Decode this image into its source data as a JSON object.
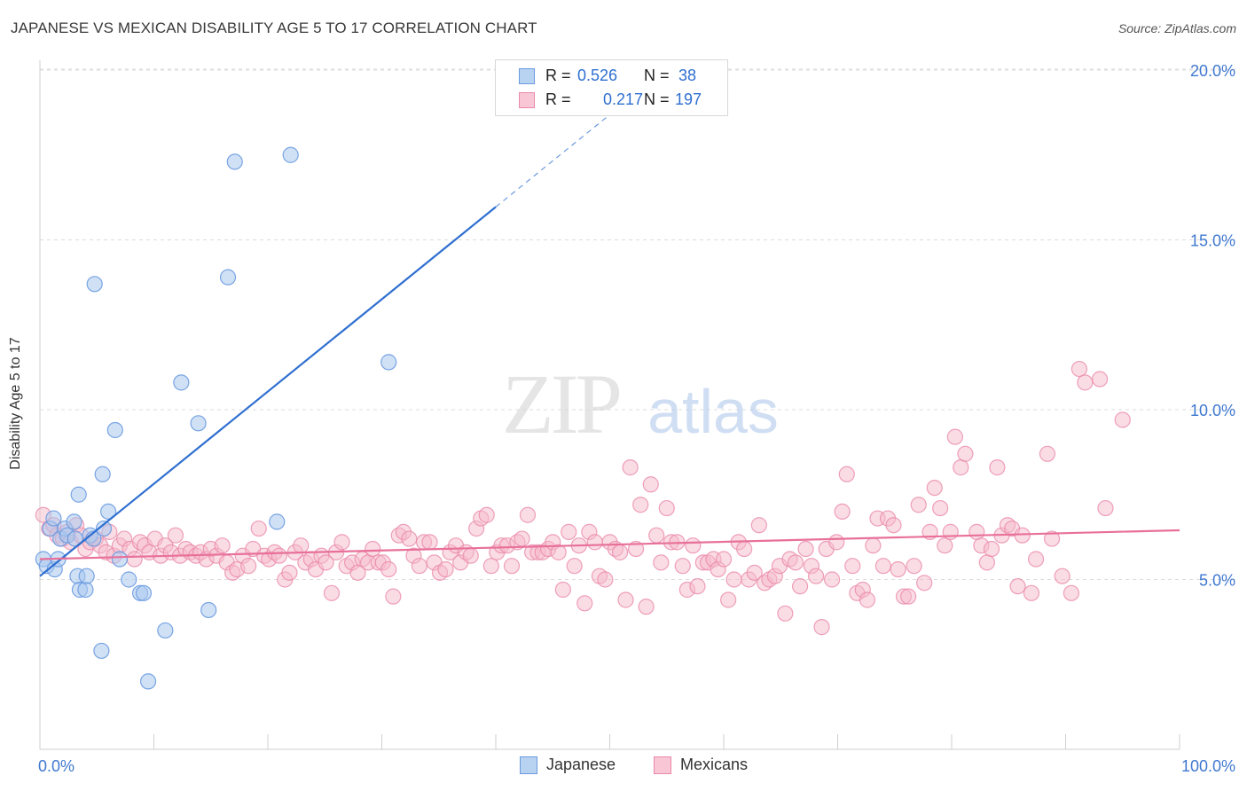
{
  "title": "JAPANESE VS MEXICAN DISABILITY AGE 5 TO 17 CORRELATION CHART",
  "source": "Source: ZipAtlas.com",
  "watermark": {
    "zip": "ZIP",
    "atlas": "atlas"
  },
  "legend": {
    "rows": [
      {
        "r_label": "R =",
        "r_value": "0.526",
        "n_label": "N =",
        "n_value": "38"
      },
      {
        "r_label": "R =",
        "r_value": "0.217",
        "n_label": "N =",
        "n_value": "197"
      }
    ]
  },
  "bottom_legend": {
    "japanese": "Japanese",
    "mexicans": "Mexicans"
  },
  "colors": {
    "japanese_fill": "#aac8ee",
    "japanese_stroke": "#6b9be0",
    "japanese_line": "#2f6fd0",
    "mexican_fill": "#f6b9cc",
    "mexican_stroke": "#ea8aaa",
    "mexican_line": "#e8709a",
    "tick_label": "#3f78d0",
    "grid": "#dddddd"
  },
  "chart_data": {
    "type": "scatter",
    "title": "JAPANESE VS MEXICAN DISABILITY AGE 5 TO 17 CORRELATION CHART",
    "xlabel": "",
    "ylabel": "Disability Age 5 to 17",
    "xlim": [
      0,
      100
    ],
    "ylim": [
      0,
      21
    ],
    "x_tick_labels": [
      "0.0%",
      "100.0%"
    ],
    "y_ticks": [
      5,
      10,
      15,
      20
    ],
    "y_tick_labels": [
      "5.0%",
      "10.0%",
      "15.0%",
      "20.0%"
    ],
    "grid": "dashed horizontal",
    "legend_position": "top-center",
    "series": [
      {
        "name": "Japanese",
        "r": 0.526,
        "n": 38,
        "trend": {
          "x": [
            0,
            40
          ],
          "y": [
            5.1,
            15.97
          ],
          "dashed_to": [
            53,
            19.5
          ]
        },
        "points": [
          [
            0.3,
            5.6
          ],
          [
            0.6,
            5.4
          ],
          [
            0.9,
            6.5
          ],
          [
            1.2,
            6.8
          ],
          [
            1.3,
            5.3
          ],
          [
            1.6,
            5.6
          ],
          [
            1.8,
            6.2
          ],
          [
            2.2,
            6.5
          ],
          [
            2.4,
            6.3
          ],
          [
            3.0,
            6.7
          ],
          [
            3.1,
            6.2
          ],
          [
            3.3,
            5.1
          ],
          [
            3.5,
            4.7
          ],
          [
            3.4,
            7.5
          ],
          [
            4.0,
            4.7
          ],
          [
            4.1,
            5.1
          ],
          [
            4.4,
            6.3
          ],
          [
            4.7,
            6.2
          ],
          [
            4.8,
            13.7
          ],
          [
            5.4,
            2.9
          ],
          [
            5.5,
            8.1
          ],
          [
            5.6,
            6.5
          ],
          [
            6.0,
            7.0
          ],
          [
            6.6,
            9.4
          ],
          [
            7.0,
            5.6
          ],
          [
            7.8,
            5.0
          ],
          [
            8.8,
            4.6
          ],
          [
            9.1,
            4.6
          ],
          [
            9.5,
            2.0
          ],
          [
            11.0,
            3.5
          ],
          [
            12.4,
            10.8
          ],
          [
            13.9,
            9.6
          ],
          [
            14.8,
            4.1
          ],
          [
            16.5,
            13.9
          ],
          [
            17.1,
            17.3
          ],
          [
            20.8,
            6.7
          ],
          [
            22.0,
            17.5
          ],
          [
            30.6,
            11.4
          ]
        ]
      },
      {
        "name": "Mexicans",
        "r": 0.217,
        "n": 197,
        "trend": {
          "x": [
            0,
            100
          ],
          "y": [
            5.6,
            6.45
          ]
        },
        "points": [
          [
            0.3,
            6.9
          ],
          [
            0.8,
            6.5
          ],
          [
            1.2,
            6.6
          ],
          [
            1.5,
            6.3
          ],
          [
            2.0,
            6.2
          ],
          [
            2.4,
            6.4
          ],
          [
            2.7,
            6.1
          ],
          [
            3.2,
            6.6
          ],
          [
            3.6,
            6.3
          ],
          [
            4.0,
            5.9
          ],
          [
            4.4,
            6.1
          ],
          [
            4.9,
            6.2
          ],
          [
            5.3,
            6.0
          ],
          [
            5.8,
            5.8
          ],
          [
            6.1,
            6.4
          ],
          [
            6.5,
            5.7
          ],
          [
            7.0,
            6.0
          ],
          [
            7.4,
            6.2
          ],
          [
            7.9,
            5.9
          ],
          [
            8.3,
            5.6
          ],
          [
            8.8,
            6.1
          ],
          [
            9.2,
            6.0
          ],
          [
            9.6,
            5.8
          ],
          [
            10.1,
            6.2
          ],
          [
            10.6,
            5.7
          ],
          [
            11.0,
            6.0
          ],
          [
            11.5,
            5.8
          ],
          [
            11.9,
            6.3
          ],
          [
            12.3,
            5.7
          ],
          [
            12.8,
            5.9
          ],
          [
            13.2,
            5.8
          ],
          [
            13.7,
            5.7
          ],
          [
            14.1,
            5.8
          ],
          [
            14.6,
            5.6
          ],
          [
            15.0,
            5.9
          ],
          [
            15.5,
            5.7
          ],
          [
            16.0,
            6.0
          ],
          [
            16.4,
            5.5
          ],
          [
            16.9,
            5.2
          ],
          [
            17.3,
            5.3
          ],
          [
            17.8,
            5.7
          ],
          [
            18.3,
            5.4
          ],
          [
            18.7,
            5.9
          ],
          [
            19.2,
            6.5
          ],
          [
            19.7,
            5.7
          ],
          [
            20.1,
            5.6
          ],
          [
            20.6,
            5.8
          ],
          [
            21.0,
            5.7
          ],
          [
            21.5,
            5.0
          ],
          [
            21.9,
            5.2
          ],
          [
            22.4,
            5.8
          ],
          [
            22.9,
            6.0
          ],
          [
            23.3,
            5.5
          ],
          [
            23.8,
            5.6
          ],
          [
            24.2,
            5.3
          ],
          [
            24.7,
            5.7
          ],
          [
            25.1,
            5.5
          ],
          [
            25.6,
            4.6
          ],
          [
            26.0,
            5.8
          ],
          [
            26.5,
            6.1
          ],
          [
            26.9,
            5.4
          ],
          [
            27.4,
            5.5
          ],
          [
            27.9,
            5.2
          ],
          [
            28.3,
            5.6
          ],
          [
            28.8,
            5.5
          ],
          [
            29.2,
            5.9
          ],
          [
            29.7,
            5.5
          ],
          [
            30.1,
            5.5
          ],
          [
            30.6,
            5.3
          ],
          [
            31.0,
            4.5
          ],
          [
            31.5,
            6.3
          ],
          [
            31.9,
            6.4
          ],
          [
            32.4,
            6.2
          ],
          [
            32.8,
            5.7
          ],
          [
            33.3,
            5.4
          ],
          [
            33.7,
            6.1
          ],
          [
            34.2,
            6.1
          ],
          [
            34.6,
            5.5
          ],
          [
            35.1,
            5.2
          ],
          [
            35.6,
            5.3
          ],
          [
            36.0,
            5.8
          ],
          [
            36.5,
            6.0
          ],
          [
            36.9,
            5.5
          ],
          [
            37.4,
            5.8
          ],
          [
            37.8,
            5.7
          ],
          [
            38.3,
            6.5
          ],
          [
            38.7,
            6.8
          ],
          [
            39.2,
            6.9
          ],
          [
            39.6,
            5.4
          ],
          [
            40.1,
            5.8
          ],
          [
            40.5,
            6.0
          ],
          [
            41.0,
            6.0
          ],
          [
            41.4,
            5.4
          ],
          [
            41.9,
            6.1
          ],
          [
            42.3,
            6.2
          ],
          [
            42.8,
            6.9
          ],
          [
            43.2,
            5.8
          ],
          [
            43.7,
            5.8
          ],
          [
            44.1,
            5.8
          ],
          [
            44.6,
            5.9
          ],
          [
            45.0,
            6.1
          ],
          [
            45.5,
            5.8
          ],
          [
            45.9,
            4.7
          ],
          [
            46.4,
            6.4
          ],
          [
            46.9,
            5.4
          ],
          [
            47.3,
            6.0
          ],
          [
            47.8,
            4.3
          ],
          [
            48.2,
            6.4
          ],
          [
            48.7,
            6.1
          ],
          [
            49.1,
            5.1
          ],
          [
            49.6,
            5.0
          ],
          [
            50.0,
            6.1
          ],
          [
            50.5,
            5.9
          ],
          [
            50.9,
            5.8
          ],
          [
            51.4,
            4.4
          ],
          [
            51.8,
            8.3
          ],
          [
            52.3,
            5.9
          ],
          [
            52.7,
            7.2
          ],
          [
            53.2,
            4.2
          ],
          [
            53.6,
            7.8
          ],
          [
            54.1,
            6.3
          ],
          [
            54.5,
            5.5
          ],
          [
            55.0,
            7.1
          ],
          [
            55.4,
            6.1
          ],
          [
            55.9,
            6.1
          ],
          [
            56.4,
            5.4
          ],
          [
            56.8,
            4.7
          ],
          [
            57.3,
            6.0
          ],
          [
            57.7,
            4.8
          ],
          [
            58.2,
            5.5
          ],
          [
            58.6,
            5.5
          ],
          [
            59.1,
            5.6
          ],
          [
            59.5,
            5.3
          ],
          [
            60.0,
            5.6
          ],
          [
            60.4,
            4.4
          ],
          [
            60.9,
            5.0
          ],
          [
            61.3,
            6.1
          ],
          [
            61.8,
            5.9
          ],
          [
            62.2,
            5.0
          ],
          [
            62.7,
            5.2
          ],
          [
            63.1,
            6.6
          ],
          [
            63.6,
            4.9
          ],
          [
            64.0,
            5.0
          ],
          [
            64.5,
            5.1
          ],
          [
            64.9,
            5.4
          ],
          [
            65.4,
            4.0
          ],
          [
            65.8,
            5.6
          ],
          [
            66.3,
            5.5
          ],
          [
            66.7,
            4.8
          ],
          [
            67.2,
            5.9
          ],
          [
            67.7,
            5.4
          ],
          [
            68.1,
            5.1
          ],
          [
            68.6,
            3.6
          ],
          [
            69.0,
            5.9
          ],
          [
            69.5,
            5.0
          ],
          [
            69.9,
            6.1
          ],
          [
            70.4,
            7.0
          ],
          [
            70.8,
            8.1
          ],
          [
            71.3,
            5.4
          ],
          [
            71.7,
            4.6
          ],
          [
            72.2,
            4.7
          ],
          [
            72.6,
            4.4
          ],
          [
            73.1,
            6.0
          ],
          [
            73.5,
            6.8
          ],
          [
            74.0,
            5.4
          ],
          [
            74.4,
            6.8
          ],
          [
            74.9,
            6.6
          ],
          [
            75.3,
            5.3
          ],
          [
            75.8,
            4.5
          ],
          [
            76.2,
            4.5
          ],
          [
            76.7,
            5.4
          ],
          [
            77.1,
            7.2
          ],
          [
            77.6,
            4.9
          ],
          [
            78.1,
            6.4
          ],
          [
            78.5,
            7.7
          ],
          [
            79.0,
            7.1
          ],
          [
            79.4,
            6.0
          ],
          [
            79.9,
            6.4
          ],
          [
            80.3,
            9.2
          ],
          [
            80.8,
            8.3
          ],
          [
            81.2,
            8.7
          ],
          [
            82.2,
            6.4
          ],
          [
            82.6,
            6.0
          ],
          [
            83.1,
            5.5
          ],
          [
            83.5,
            5.9
          ],
          [
            84.0,
            8.3
          ],
          [
            84.4,
            6.3
          ],
          [
            84.9,
            6.6
          ],
          [
            85.3,
            6.5
          ],
          [
            85.8,
            4.8
          ],
          [
            86.2,
            6.3
          ],
          [
            87.0,
            4.6
          ],
          [
            87.4,
            5.6
          ],
          [
            88.4,
            8.7
          ],
          [
            88.8,
            6.2
          ],
          [
            89.7,
            5.1
          ],
          [
            90.5,
            4.6
          ],
          [
            91.2,
            11.2
          ],
          [
            91.7,
            10.8
          ],
          [
            93.0,
            10.9
          ],
          [
            93.5,
            7.1
          ],
          [
            95.0,
            9.7
          ]
        ]
      }
    ]
  }
}
